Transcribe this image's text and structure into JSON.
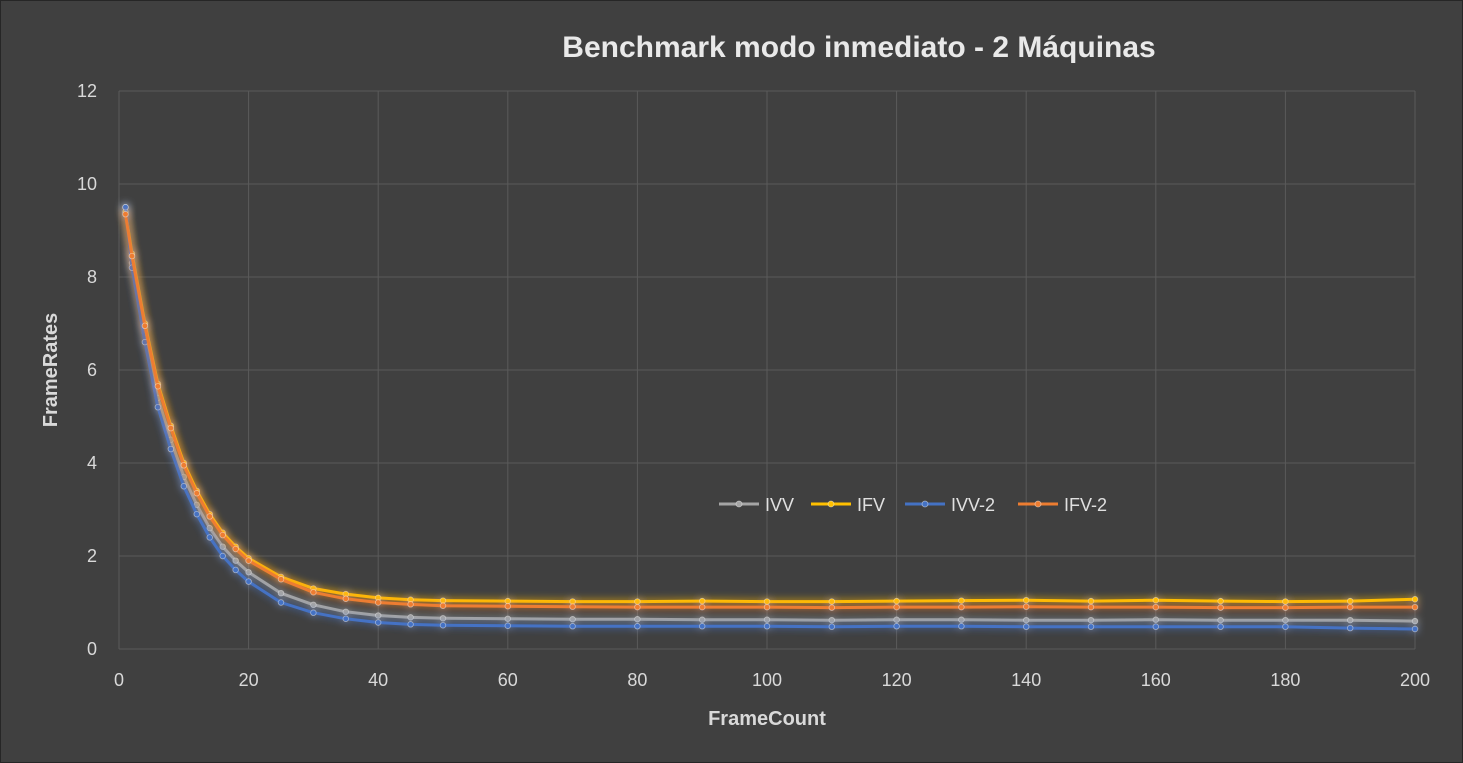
{
  "chart_data": {
    "type": "line",
    "title": "Benchmark modo inmediato - 2 Máquinas",
    "xlabel": "FrameCount",
    "ylabel": "FrameRates",
    "xlim": [
      0,
      200
    ],
    "ylim": [
      0,
      12
    ],
    "x_ticks": [
      0,
      20,
      40,
      60,
      80,
      100,
      120,
      140,
      160,
      180,
      200
    ],
    "y_ticks": [
      0,
      2,
      4,
      6,
      8,
      10,
      12
    ],
    "grid": true,
    "legend_position": "center-right",
    "x": [
      1,
      2,
      4,
      6,
      8,
      10,
      12,
      14,
      16,
      18,
      20,
      25,
      30,
      35,
      40,
      45,
      50,
      60,
      70,
      80,
      90,
      100,
      110,
      120,
      130,
      140,
      150,
      160,
      170,
      180,
      190,
      200
    ],
    "series": [
      {
        "name": "IVV",
        "color": "#a5a5a5",
        "values": [
          9.5,
          8.3,
          6.8,
          5.4,
          4.5,
          3.7,
          3.1,
          2.6,
          2.2,
          1.9,
          1.65,
          1.2,
          0.95,
          0.8,
          0.72,
          0.68,
          0.66,
          0.65,
          0.64,
          0.64,
          0.63,
          0.63,
          0.62,
          0.63,
          0.63,
          0.62,
          0.62,
          0.63,
          0.62,
          0.62,
          0.62,
          0.6
        ]
      },
      {
        "name": "IFV",
        "color": "#ffc000",
        "values": [
          9.4,
          8.5,
          7.0,
          5.7,
          4.8,
          4.0,
          3.4,
          2.9,
          2.5,
          2.2,
          1.95,
          1.55,
          1.3,
          1.18,
          1.1,
          1.06,
          1.04,
          1.03,
          1.02,
          1.02,
          1.03,
          1.02,
          1.02,
          1.03,
          1.04,
          1.05,
          1.03,
          1.05,
          1.03,
          1.02,
          1.03,
          1.07
        ]
      },
      {
        "name": "IVV-2",
        "color": "#4472c4",
        "values": [
          9.5,
          8.2,
          6.6,
          5.2,
          4.3,
          3.5,
          2.9,
          2.4,
          2.0,
          1.7,
          1.45,
          1.0,
          0.78,
          0.65,
          0.57,
          0.53,
          0.51,
          0.5,
          0.49,
          0.49,
          0.49,
          0.49,
          0.48,
          0.49,
          0.49,
          0.48,
          0.48,
          0.48,
          0.48,
          0.48,
          0.45,
          0.43
        ]
      },
      {
        "name": "IFV-2",
        "color": "#ed7d31",
        "values": [
          9.35,
          8.45,
          6.95,
          5.65,
          4.75,
          3.95,
          3.35,
          2.85,
          2.45,
          2.15,
          1.9,
          1.5,
          1.22,
          1.08,
          1.0,
          0.96,
          0.93,
          0.92,
          0.91,
          0.9,
          0.9,
          0.9,
          0.89,
          0.9,
          0.9,
          0.91,
          0.9,
          0.9,
          0.89,
          0.89,
          0.9,
          0.9
        ]
      }
    ]
  }
}
